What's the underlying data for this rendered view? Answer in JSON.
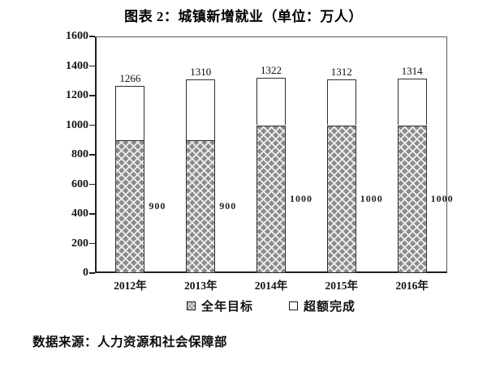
{
  "title": "图表 2：城镇新增就业（单位：万人）",
  "source": "数据来源：人力资源和社会保障部",
  "colors": {
    "hatch_fill": "#8c8c8c",
    "hatch_line": "#efefef",
    "bar_border": "#2d2d2d",
    "axis": "#1f1f1f",
    "frame": "#595959",
    "text": "#111111"
  },
  "chart_data": {
    "type": "bar",
    "stacked": true,
    "title": "图表 2：城镇新增就业（单位：万人）",
    "xlabel": "",
    "ylabel": "",
    "categories": [
      "2012年",
      "2013年",
      "2014年",
      "2015年",
      "2016年"
    ],
    "series": [
      {
        "name": "全年目标",
        "style": "hatch",
        "values": [
          900,
          900,
          1000,
          1000,
          1000
        ]
      },
      {
        "name": "超额完成",
        "style": "white",
        "values": [
          366,
          410,
          322,
          312,
          314
        ]
      }
    ],
    "totals": [
      1266,
      1310,
      1322,
      1312,
      1314
    ],
    "target_labels": [
      "900",
      "900",
      "1000",
      "1000",
      "1000"
    ],
    "total_labels": [
      "1266",
      "1310",
      "1322",
      "1312",
      "1314"
    ],
    "ylim": [
      0,
      1600
    ],
    "yticks": [
      0,
      200,
      400,
      600,
      800,
      1000,
      1200,
      1400,
      1600
    ],
    "grid": false,
    "legend_position": "bottom"
  }
}
